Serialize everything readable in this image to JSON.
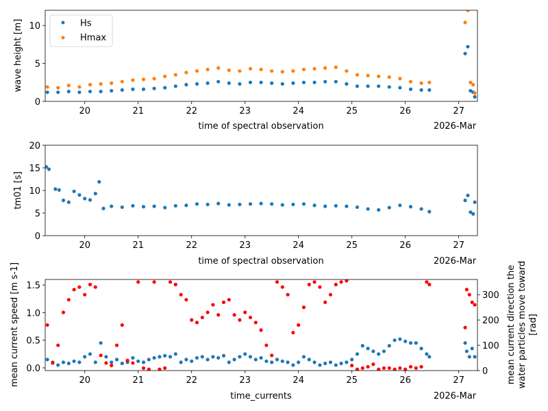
{
  "chart_data": [
    {
      "type": "scatter",
      "xlabel": "time of spectral observation",
      "ylabel": "wave height [m]",
      "xlim": [
        19.26,
        27.35
      ],
      "ylim": [
        0,
        12
      ],
      "xticks": [
        "20",
        "21",
        "22",
        "23",
        "24",
        "25",
        "26",
        "27"
      ],
      "xtick_values": [
        20,
        21,
        22,
        23,
        24,
        25,
        26,
        27
      ],
      "yticks": [
        "0",
        "5",
        "10"
      ],
      "ytick_values": [
        0,
        5,
        10
      ],
      "offset_label": "2026-Mar",
      "legend": {
        "placement": "top-left",
        "entries": [
          "Hs",
          "Hmax"
        ]
      },
      "series": [
        {
          "name": "Hs",
          "color": "#1f77b4",
          "x": [
            19.3,
            19.5,
            19.7,
            19.9,
            20.1,
            20.3,
            20.5,
            20.7,
            20.9,
            21.1,
            21.3,
            21.5,
            21.7,
            21.9,
            22.1,
            22.3,
            22.5,
            22.7,
            22.9,
            23.1,
            23.3,
            23.5,
            23.7,
            23.9,
            24.1,
            24.3,
            24.5,
            24.7,
            24.9,
            25.1,
            25.3,
            25.5,
            25.7,
            25.9,
            26.1,
            26.3,
            26.45,
            27.12,
            27.17,
            27.22,
            27.27,
            27.3
          ],
          "y": [
            1.2,
            1.2,
            1.3,
            1.2,
            1.3,
            1.3,
            1.4,
            1.5,
            1.6,
            1.6,
            1.7,
            1.8,
            2.0,
            2.2,
            2.3,
            2.4,
            2.6,
            2.4,
            2.3,
            2.5,
            2.5,
            2.4,
            2.3,
            2.4,
            2.5,
            2.5,
            2.6,
            2.6,
            2.3,
            2.0,
            2.0,
            2.0,
            1.9,
            1.8,
            1.6,
            1.5,
            1.5,
            6.3,
            7.2,
            1.4,
            1.2,
            0.6
          ]
        },
        {
          "name": "Hmax",
          "color": "#ff7f0e",
          "x": [
            19.3,
            19.5,
            19.7,
            19.9,
            20.1,
            20.3,
            20.5,
            20.7,
            20.9,
            21.1,
            21.3,
            21.5,
            21.7,
            21.9,
            22.1,
            22.3,
            22.5,
            22.7,
            22.9,
            23.1,
            23.3,
            23.5,
            23.7,
            23.9,
            24.1,
            24.3,
            24.5,
            24.7,
            24.9,
            25.1,
            25.3,
            25.5,
            25.7,
            25.9,
            26.1,
            26.3,
            26.45,
            27.12,
            27.17,
            27.22,
            27.27,
            27.3
          ],
          "y": [
            1.9,
            1.8,
            2.1,
            1.9,
            2.2,
            2.3,
            2.4,
            2.6,
            2.8,
            2.9,
            3.0,
            3.3,
            3.5,
            3.8,
            4.0,
            4.2,
            4.4,
            4.1,
            4.0,
            4.3,
            4.2,
            4.0,
            3.9,
            4.0,
            4.2,
            4.3,
            4.4,
            4.5,
            4.0,
            3.5,
            3.4,
            3.3,
            3.2,
            3.0,
            2.6,
            2.4,
            2.5,
            10.4,
            12.0,
            2.5,
            2.2,
            1.1
          ]
        }
      ]
    },
    {
      "type": "scatter",
      "xlabel": "time of spectral observation",
      "ylabel": "tm01 [s]",
      "xlim": [
        19.26,
        27.35
      ],
      "ylim": [
        0,
        20
      ],
      "xticks": [
        "20",
        "21",
        "22",
        "23",
        "24",
        "25",
        "26",
        "27"
      ],
      "xtick_values": [
        20,
        21,
        22,
        23,
        24,
        25,
        26,
        27
      ],
      "yticks": [
        "0",
        "5",
        "10",
        "15",
        "20"
      ],
      "ytick_values": [
        0,
        5,
        10,
        15,
        20
      ],
      "offset_label": "2026-Mar",
      "series": [
        {
          "name": "tm01",
          "color": "#1f77b4",
          "x": [
            19.28,
            19.33,
            19.45,
            19.52,
            19.6,
            19.7,
            19.8,
            19.9,
            20.0,
            20.1,
            20.2,
            20.27,
            20.35,
            20.5,
            20.7,
            20.9,
            21.1,
            21.3,
            21.5,
            21.7,
            21.9,
            22.1,
            22.3,
            22.5,
            22.7,
            22.9,
            23.1,
            23.3,
            23.5,
            23.7,
            23.9,
            24.1,
            24.3,
            24.5,
            24.7,
            24.9,
            25.1,
            25.3,
            25.5,
            25.7,
            25.9,
            26.1,
            26.3,
            26.45,
            27.12,
            27.17,
            27.22,
            27.27,
            27.3
          ],
          "y": [
            15.2,
            14.7,
            10.3,
            10.1,
            7.8,
            7.4,
            9.8,
            9.0,
            8.2,
            7.9,
            9.3,
            11.9,
            6.0,
            6.5,
            6.3,
            6.6,
            6.4,
            6.5,
            6.2,
            6.6,
            6.7,
            7.0,
            6.9,
            7.1,
            6.8,
            6.9,
            7.0,
            7.1,
            7.0,
            6.8,
            6.9,
            7.0,
            6.7,
            6.5,
            6.6,
            6.5,
            6.3,
            5.9,
            5.7,
            6.2,
            6.7,
            6.4,
            5.9,
            5.3,
            7.8,
            8.9,
            5.2,
            4.8,
            7.4
          ]
        }
      ]
    },
    {
      "type": "scatter",
      "xlabel": "time_currents",
      "ylabel": "mean current speed [m s-1]",
      "ylabel_right": "mean current direction the water particles move toward [rad]",
      "xlim": [
        19.26,
        27.35
      ],
      "ylim": [
        -0.05,
        1.6
      ],
      "ylim_right": [
        0,
        360
      ],
      "xticks": [
        "20",
        "21",
        "22",
        "23",
        "24",
        "25",
        "26",
        "27"
      ],
      "xtick_values": [
        20,
        21,
        22,
        23,
        24,
        25,
        26,
        27
      ],
      "yticks": [
        "0.0",
        "0.5",
        "1.0",
        "1.5"
      ],
      "ytick_values": [
        0,
        0.5,
        1.0,
        1.5
      ],
      "yticks_right": [
        "0",
        "100",
        "200",
        "300"
      ],
      "ytick_values_right": [
        0,
        100,
        200,
        300
      ],
      "offset_label": "2026-Mar",
      "series": [
        {
          "name": "speed",
          "axis": "left",
          "color": "#1f77b4",
          "x": [
            19.3,
            19.4,
            19.5,
            19.6,
            19.7,
            19.8,
            19.9,
            20.0,
            20.1,
            20.2,
            20.3,
            20.4,
            20.5,
            20.6,
            20.7,
            20.8,
            20.9,
            21.0,
            21.1,
            21.2,
            21.3,
            21.4,
            21.5,
            21.6,
            21.7,
            21.8,
            21.9,
            22.0,
            22.1,
            22.2,
            22.3,
            22.4,
            22.5,
            22.6,
            22.7,
            22.8,
            22.9,
            23.0,
            23.1,
            23.2,
            23.3,
            23.4,
            23.5,
            23.6,
            23.7,
            23.8,
            23.9,
            24.0,
            24.1,
            24.2,
            24.3,
            24.4,
            24.5,
            24.6,
            24.7,
            24.8,
            24.9,
            25.0,
            25.1,
            25.2,
            25.3,
            25.4,
            25.5,
            25.6,
            25.7,
            25.8,
            25.9,
            26.0,
            26.1,
            26.2,
            26.3,
            26.4,
            26.45,
            27.12,
            27.15,
            27.2,
            27.25,
            27.3
          ],
          "y": [
            0.15,
            0.1,
            0.05,
            0.1,
            0.08,
            0.12,
            0.1,
            0.2,
            0.25,
            0.1,
            0.45,
            0.2,
            0.1,
            0.15,
            0.08,
            0.1,
            0.18,
            0.12,
            0.1,
            0.15,
            0.18,
            0.2,
            0.22,
            0.2,
            0.25,
            0.1,
            0.15,
            0.12,
            0.18,
            0.2,
            0.15,
            0.2,
            0.18,
            0.22,
            0.1,
            0.15,
            0.2,
            0.25,
            0.2,
            0.15,
            0.18,
            0.12,
            0.1,
            0.15,
            0.12,
            0.1,
            0.05,
            0.1,
            0.2,
            0.15,
            0.1,
            0.05,
            0.08,
            0.1,
            0.05,
            0.08,
            0.1,
            0.15,
            0.25,
            0.4,
            0.35,
            0.3,
            0.25,
            0.3,
            0.4,
            0.5,
            0.52,
            0.48,
            0.45,
            0.45,
            0.35,
            0.25,
            0.2,
            0.45,
            0.3,
            0.2,
            0.35,
            0.2
          ]
        },
        {
          "name": "direction",
          "axis": "right",
          "color": "#ff0000",
          "x": [
            19.3,
            19.4,
            19.5,
            19.6,
            19.7,
            19.8,
            19.9,
            20.0,
            20.1,
            20.2,
            20.3,
            20.4,
            20.5,
            20.6,
            20.7,
            20.8,
            20.9,
            21.0,
            21.1,
            21.2,
            21.3,
            21.4,
            21.5,
            21.6,
            21.7,
            21.8,
            21.9,
            22.0,
            22.1,
            22.2,
            22.3,
            22.4,
            22.5,
            22.6,
            22.7,
            22.8,
            22.9,
            23.0,
            23.1,
            23.2,
            23.3,
            23.4,
            23.5,
            23.6,
            23.7,
            23.8,
            23.9,
            24.0,
            24.1,
            24.2,
            24.3,
            24.4,
            24.5,
            24.6,
            24.7,
            24.8,
            24.9,
            25.0,
            25.1,
            25.2,
            25.3,
            25.4,
            25.5,
            25.6,
            25.7,
            25.8,
            25.9,
            26.0,
            26.1,
            26.2,
            26.3,
            26.4,
            26.45,
            27.12,
            27.15,
            27.2,
            27.25,
            27.3
          ],
          "y": [
            180,
            30,
            100,
            230,
            280,
            320,
            330,
            300,
            340,
            330,
            60,
            30,
            20,
            100,
            180,
            40,
            30,
            350,
            10,
            5,
            350,
            5,
            10,
            350,
            340,
            300,
            280,
            200,
            190,
            210,
            230,
            260,
            220,
            270,
            280,
            220,
            200,
            230,
            210,
            190,
            160,
            100,
            60,
            350,
            330,
            300,
            150,
            180,
            250,
            340,
            350,
            330,
            270,
            300,
            340,
            350,
            355,
            20,
            5,
            10,
            15,
            25,
            5,
            10,
            10,
            5,
            10,
            5,
            15,
            10,
            15,
            350,
            340,
            170,
            320,
            300,
            270,
            260
          ]
        }
      ]
    }
  ]
}
